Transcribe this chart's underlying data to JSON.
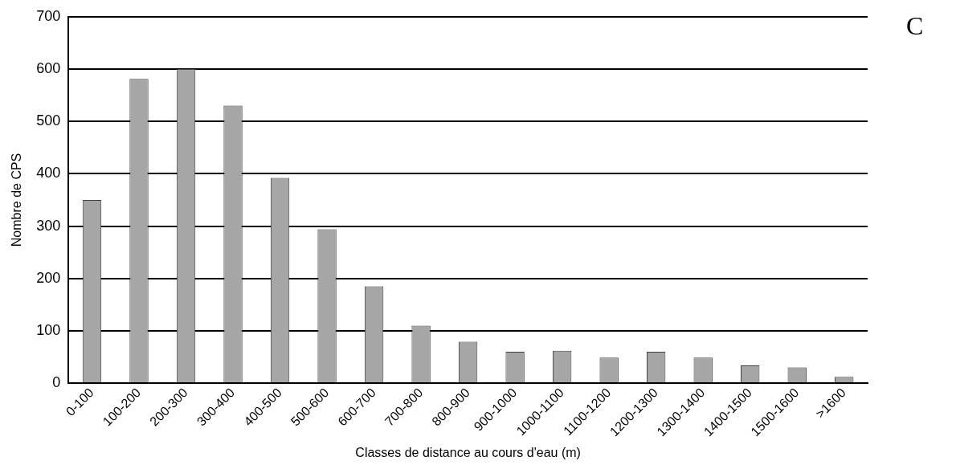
{
  "chart_data": {
    "type": "bar",
    "categories": [
      "0-100",
      "100-200",
      "200-300",
      "300-400",
      "400-500",
      "500-600",
      "600-700",
      "700-800",
      "800-900",
      "900-1000",
      "1000-1100",
      "1100-1200",
      "1200-1300",
      "1300-1400",
      "1400-1500",
      "1500-1600",
      ">1600"
    ],
    "values": [
      350,
      581,
      600,
      530,
      392,
      294,
      185,
      110,
      79,
      60,
      62,
      49,
      60,
      49,
      34,
      30,
      12
    ],
    "color": "#a6a6a6",
    "xlabel": "Classes de distance au cours d'eau (m)",
    "ylabel": "Nombre de CPS",
    "ylim": [
      0,
      700
    ],
    "yticks": [
      0,
      100,
      200,
      300,
      400,
      500,
      600,
      700
    ],
    "grid": "y",
    "legend": false,
    "annotations": [
      "C"
    ]
  }
}
